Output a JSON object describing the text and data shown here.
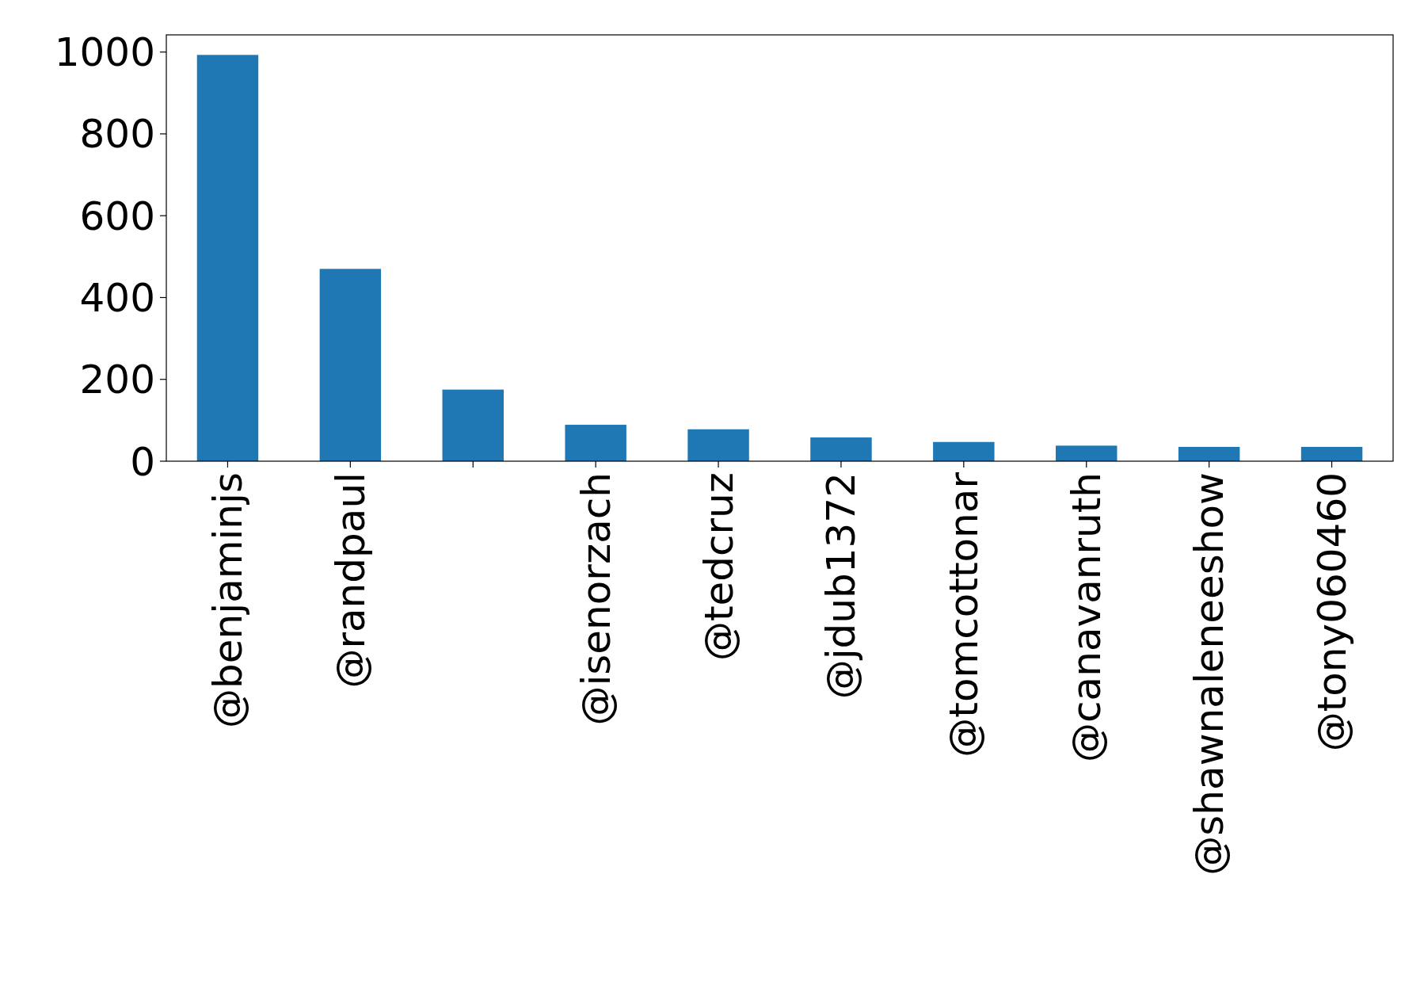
{
  "chart_data": {
    "type": "bar",
    "categories": [
      "@benjaminjs",
      "@randpaul",
      null,
      "@isenorzach",
      "@tedcruz",
      "@jdub1372",
      "@tomcottonar",
      "@canavanruth",
      "@shawnaleneeshow",
      "@tony060460"
    ],
    "values": [
      993,
      470,
      175,
      89,
      78,
      58,
      47,
      38,
      35,
      35
    ],
    "color": "#1f77b4",
    "ylim": [
      0,
      1042
    ],
    "yticks": [
      0,
      200,
      400,
      600,
      800,
      1000
    ],
    "grid": false
  }
}
